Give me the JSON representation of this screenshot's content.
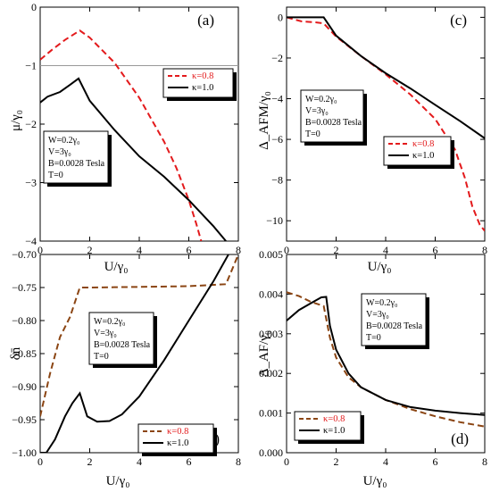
{
  "chart_data": [
    {
      "panel": "(a)",
      "type": "line",
      "ylabel": "μ/γ₀",
      "xlabel": "U/γ₀",
      "xlim": [
        0,
        8
      ],
      "ylim": [
        -4,
        0
      ],
      "xticks": [
        "0",
        "2",
        "4",
        "6",
        "8"
      ],
      "yticks": [
        "0",
        "−1",
        "−2",
        "−3",
        "−4"
      ],
      "hline": -1,
      "params": [
        "W=0.2γ₀",
        "V=3γ₀",
        "B=0.0028 Tesla",
        "T=0"
      ],
      "legend_position": "top-right",
      "series": [
        {
          "name": "κ=0.8",
          "color": "#e31a1c",
          "dash": "7,4",
          "label_color": "#e31a1c",
          "x": [
            0,
            0.5,
            1.0,
            1.6,
            2.0,
            3.0,
            4.0,
            5.0,
            5.5,
            6.0,
            6.3,
            6.5
          ],
          "y": [
            -0.9,
            -0.72,
            -0.56,
            -0.4,
            -0.52,
            -0.95,
            -1.55,
            -2.3,
            -2.75,
            -3.3,
            -3.7,
            -4.0
          ]
        },
        {
          "name": "κ=1.0",
          "color": "#000000",
          "dash": "",
          "label_color": "#000000",
          "x": [
            0,
            0.3,
            0.8,
            1.2,
            1.55,
            2.0,
            3.0,
            4.0,
            5.0,
            6.0,
            7.0,
            7.5
          ],
          "y": [
            -1.63,
            -1.53,
            -1.45,
            -1.33,
            -1.22,
            -1.6,
            -2.1,
            -2.55,
            -2.9,
            -3.3,
            -3.75,
            -4.0
          ]
        }
      ]
    },
    {
      "panel": "(c)",
      "type": "line",
      "ylabel": "Δ_AFM/γ₀",
      "xlabel": "U/γ₀",
      "xlim": [
        0,
        8
      ],
      "ylim": [
        -11,
        0.5
      ],
      "xticks": [
        "0",
        "2",
        "4",
        "6",
        "8"
      ],
      "yticks": [
        "0",
        "−2",
        "−4",
        "−6",
        "−8",
        "−10"
      ],
      "params": [
        "W=0.2γ₀",
        "V=3γ₀",
        "B=0.0028 Tesla",
        "T=0"
      ],
      "legend_position": "bottom-right",
      "series": [
        {
          "name": "κ=0.8",
          "color": "#e31a1c",
          "dash": "7,4",
          "label_color": "#e31a1c",
          "x": [
            0,
            0.6,
            1.2,
            1.5,
            2.0,
            3.0,
            4.0,
            5.0,
            6.0,
            6.8,
            7.2,
            7.5,
            7.8,
            8.0
          ],
          "y": [
            0,
            -0.2,
            -0.25,
            -0.3,
            -0.95,
            -1.9,
            -2.8,
            -3.8,
            -5.0,
            -6.5,
            -7.9,
            -9.3,
            -10.2,
            -10.5
          ]
        },
        {
          "name": "κ=1.0",
          "color": "#000000",
          "dash": "",
          "label_color": "#000000",
          "x": [
            0,
            1.5,
            2.0,
            3.0,
            4.0,
            5.0,
            6.0,
            7.0,
            8.0
          ],
          "y": [
            0,
            0,
            -0.9,
            -1.9,
            -2.75,
            -3.5,
            -4.3,
            -5.1,
            -5.95
          ]
        }
      ]
    },
    {
      "panel": "(b)",
      "type": "line",
      "ylabel": "δn̄",
      "xlabel": "U/γ₀",
      "xlim": [
        0,
        8
      ],
      "ylim": [
        -1.0,
        -0.7
      ],
      "xticks": [
        "0",
        "2",
        "4",
        "6",
        "8"
      ],
      "yticks": [
        "−0.70",
        "−0.75",
        "−0.80",
        "−0.85",
        "−0.90",
        "−0.95",
        "−1.00"
      ],
      "params": [
        "W=0.2γ₀",
        "V=3γ₀",
        "B=0.0028 Tesla",
        "T=0"
      ],
      "legend_position": "bottom-right",
      "series": [
        {
          "name": "κ=0.8",
          "color": "#8b4513",
          "dash": "7,4",
          "label_color": "#e31a1c",
          "x": [
            0,
            0.4,
            0.8,
            1.2,
            1.6,
            2.0,
            4.0,
            6.0,
            7.5,
            8.0
          ],
          "y": [
            -0.945,
            -0.88,
            -0.825,
            -0.795,
            -0.75,
            -0.75,
            -0.749,
            -0.748,
            -0.745,
            -0.7
          ]
        },
        {
          "name": "κ=1.0",
          "color": "#000000",
          "dash": "",
          "label_color": "#000000",
          "x": [
            0,
            0.25,
            0.6,
            1.0,
            1.3,
            1.6,
            1.9,
            2.3,
            2.8,
            3.3,
            4.0,
            5.0,
            6.0,
            7.0,
            7.6
          ],
          "y": [
            -1.0,
            -1.0,
            -0.98,
            -0.945,
            -0.925,
            -0.91,
            -0.945,
            -0.953,
            -0.952,
            -0.942,
            -0.915,
            -0.86,
            -0.8,
            -0.74,
            -0.7
          ]
        }
      ]
    },
    {
      "panel": "(d)",
      "type": "line",
      "ylabel": "Δ_AF/γ₀",
      "xlabel": "U/γ₀",
      "xlim": [
        0,
        8
      ],
      "ylim": [
        0,
        0.005
      ],
      "xticks": [
        "0",
        "2",
        "4",
        "6",
        "8"
      ],
      "yticks": [
        "0.000",
        "0.001",
        "0.002",
        "0.003",
        "0.004",
        "0.005"
      ],
      "params": [
        "W=0.2γ₀",
        "V=3γ₀",
        "B=0.0028 Tesla",
        "T=0"
      ],
      "legend_position": "bottom-left",
      "series": [
        {
          "name": "κ=0.8",
          "color": "#8b4513",
          "dash": "7,4",
          "label_color": "#e31a1c",
          "x": [
            0,
            0.5,
            1.0,
            1.5,
            1.75,
            2.0,
            2.5,
            3.0,
            4.0,
            5.0,
            6.0,
            7.0,
            8.0
          ],
          "y": [
            0.00405,
            0.00395,
            0.0038,
            0.0037,
            0.0029,
            0.0024,
            0.0019,
            0.00165,
            0.00133,
            0.0011,
            0.00092,
            0.00077,
            0.00066
          ]
        },
        {
          "name": "κ=1.0",
          "color": "#000000",
          "dash": "",
          "label_color": "#000000",
          "x": [
            0,
            0.5,
            1.0,
            1.4,
            1.6,
            1.75,
            2.0,
            2.5,
            3.0,
            4.0,
            5.0,
            6.0,
            7.0,
            8.0
          ],
          "y": [
            0.00333,
            0.0036,
            0.00378,
            0.00392,
            0.00393,
            0.0032,
            0.0026,
            0.002,
            0.00165,
            0.00133,
            0.00115,
            0.00106,
            0.001,
            0.00095
          ]
        }
      ]
    }
  ]
}
